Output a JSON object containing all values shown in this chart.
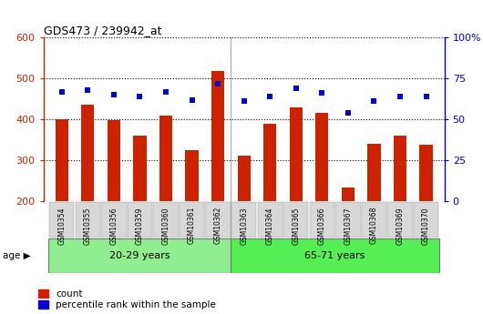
{
  "title": "GDS473 / 239942_at",
  "samples": [
    "GSM10354",
    "GSM10355",
    "GSM10356",
    "GSM10359",
    "GSM10360",
    "GSM10361",
    "GSM10362",
    "GSM10363",
    "GSM10364",
    "GSM10365",
    "GSM10366",
    "GSM10367",
    "GSM10368",
    "GSM10369",
    "GSM10370"
  ],
  "counts": [
    400,
    437,
    398,
    360,
    410,
    325,
    518,
    310,
    388,
    430,
    415,
    232,
    340,
    360,
    338
  ],
  "percentiles": [
    67,
    68,
    65,
    64,
    67,
    62,
    72,
    61,
    64,
    69,
    66,
    54,
    61,
    64,
    64
  ],
  "groups": [
    {
      "label": "20-29 years",
      "start": 0,
      "end": 7
    },
    {
      "label": "65-71 years",
      "start": 7,
      "end": 15
    }
  ],
  "ylim_left": [
    200,
    600
  ],
  "ylim_right": [
    0,
    100
  ],
  "yticks_left": [
    200,
    300,
    400,
    500,
    600
  ],
  "yticks_right": [
    0,
    25,
    50,
    75,
    100
  ],
  "bar_color": "#cc2200",
  "dot_color": "#0000cc",
  "group_color_light": "#90ee90",
  "group_color_bright": "#55ee55",
  "tick_bg_color": "#cccccc",
  "grid_color": "#000000",
  "bg_color": "#ffffff",
  "bar_bottom": 200,
  "legend_items": [
    "count",
    "percentile rank within the sample"
  ]
}
